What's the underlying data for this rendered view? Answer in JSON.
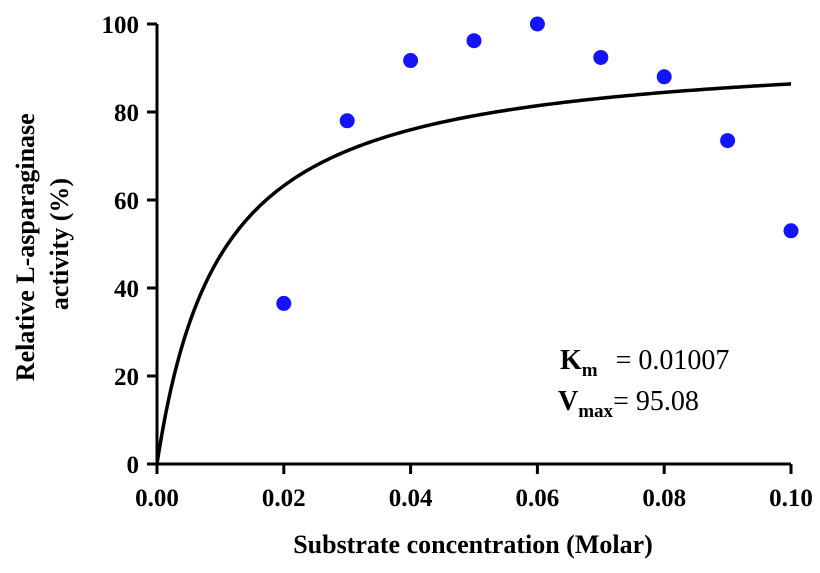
{
  "chart_data": {
    "type": "scatter",
    "xlabel": "Substrate concentration (Molar)",
    "ylabel_lines": [
      "Relative L-asparaginase",
      "activity (%)"
    ],
    "xlim": [
      0,
      0.1
    ],
    "ylim": [
      0,
      100
    ],
    "x_ticks": [
      "0.00",
      "0.02",
      "0.04",
      "0.06",
      "0.08",
      "0.10"
    ],
    "y_ticks": [
      "0",
      "20",
      "40",
      "60",
      "80",
      "100"
    ],
    "grid": false,
    "colors": {
      "points": "#1414ff",
      "curve": "#000000"
    },
    "series": [
      {
        "type": "scatter",
        "x": [
          0.02,
          0.03,
          0.04,
          0.05,
          0.06,
          0.07,
          0.08,
          0.09,
          0.1
        ],
        "y": [
          36.5,
          78.0,
          91.7,
          96.2,
          100.0,
          92.4,
          88.0,
          73.5,
          53.0
        ]
      }
    ],
    "fit": {
      "model": "michaelis-menten",
      "km": 0.01007,
      "vmax": 95.08
    },
    "annotations": {
      "km_main": "K",
      "km_sub": "m",
      "km_value": "= 0.01007",
      "vmax_main": "V",
      "vmax_sub": "max",
      "vmax_value": "= 95.08"
    }
  }
}
